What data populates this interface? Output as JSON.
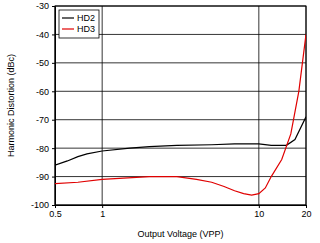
{
  "chart_data": {
    "type": "line",
    "x_label": "Output Voltage (VPP)",
    "y_label": "Harmonic Distortion (dBc)",
    "log": "x",
    "grid": true,
    "legend": "upper left",
    "xlim": [
      0.5,
      20
    ],
    "ylim": [
      -100,
      -30
    ],
    "xticks": [
      0.5,
      1,
      10,
      20
    ],
    "yticks": [
      -100,
      -90,
      -80,
      -70,
      -60,
      -50,
      -40,
      -30
    ],
    "series": [
      {
        "name": "HD2",
        "color": "#000000",
        "x": [
          0.5,
          0.6,
          0.7,
          0.8,
          1,
          1.5,
          2,
          3,
          5,
          7,
          10,
          12,
          15,
          17,
          20
        ],
        "values": [
          -86,
          -84.5,
          -83,
          -82,
          -81,
          -80,
          -79.5,
          -79,
          -78.8,
          -78.5,
          -78.5,
          -79,
          -79,
          -77,
          -69
        ]
      },
      {
        "name": "HD3",
        "color": "#e00000",
        "x": [
          0.5,
          0.7,
          1,
          2,
          3,
          4,
          5,
          6,
          7,
          8,
          9,
          10,
          11,
          12,
          14,
          16,
          18,
          20
        ],
        "values": [
          -92.5,
          -92,
          -91,
          -90,
          -90,
          -91,
          -92,
          -93.5,
          -95,
          -96,
          -96.5,
          -96,
          -94,
          -90,
          -84,
          -75,
          -60,
          -40
        ]
      }
    ]
  }
}
